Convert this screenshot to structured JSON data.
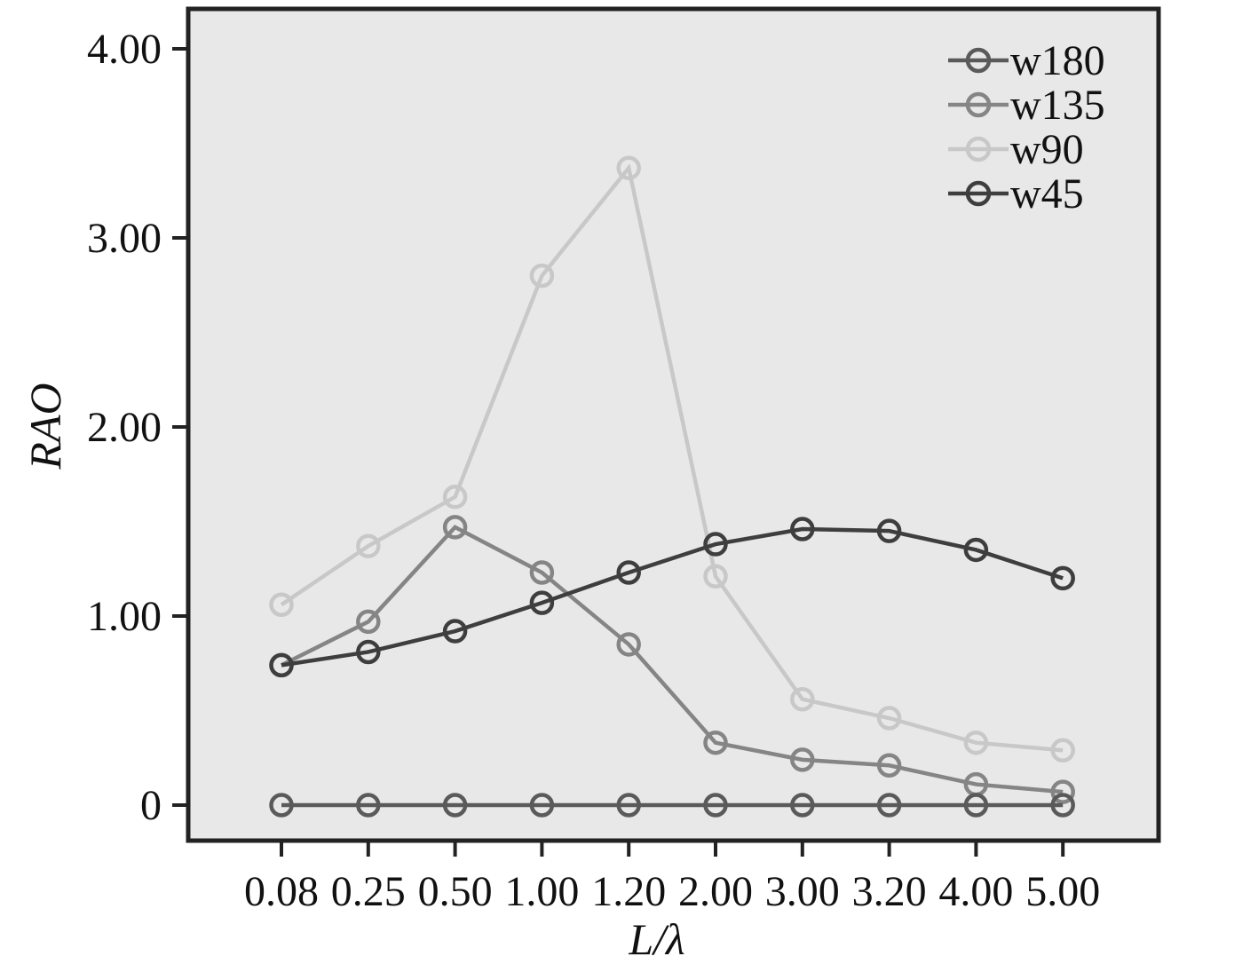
{
  "chart_data": {
    "type": "line",
    "xlabel": "L/λ",
    "ylabel": "RAO",
    "categories": [
      "0.08",
      "0.25",
      "0.50",
      "1.00",
      "1.20",
      "2.00",
      "3.00",
      "3.20",
      "4.00",
      "5.00"
    ],
    "yticks": [
      "0",
      "1.00",
      "2.00",
      "3.00",
      "4.00"
    ],
    "ylim": [
      0,
      4.0
    ],
    "grid": false,
    "legend_position": "top-right",
    "series": [
      {
        "name": "w180",
        "color": "#5a5a5a",
        "values": [
          0,
          0,
          0,
          0,
          0,
          0,
          0,
          0,
          0,
          0
        ]
      },
      {
        "name": "w135",
        "color": "#858585",
        "values": [
          0.74,
          0.97,
          1.47,
          1.23,
          0.85,
          0.33,
          0.24,
          0.21,
          0.11,
          0.07
        ]
      },
      {
        "name": "w90",
        "color": "#c8c8c8",
        "values": [
          1.06,
          1.37,
          1.63,
          2.8,
          3.37,
          1.21,
          0.56,
          0.46,
          0.33,
          0.29
        ]
      },
      {
        "name": "w45",
        "color": "#3e3e3e",
        "values": [
          0.74,
          0.81,
          0.92,
          1.07,
          1.23,
          1.38,
          1.46,
          1.45,
          1.35,
          1.2
        ]
      }
    ]
  }
}
